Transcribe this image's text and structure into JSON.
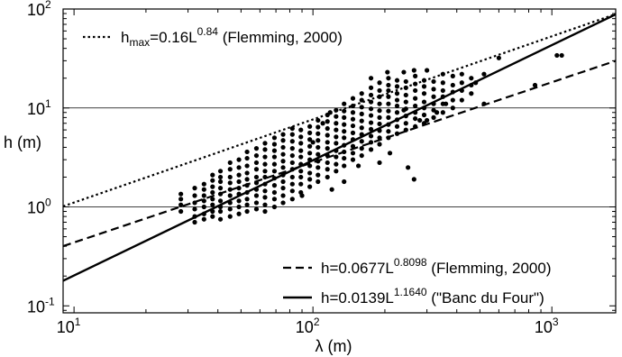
{
  "chart_data": {
    "type": "scatter",
    "xscale": "log",
    "yscale": "log",
    "xlim": [
      9,
      1850
    ],
    "ylim": [
      0.085,
      100
    ],
    "xlabel": "λ (m)",
    "ylabel": "h (m)",
    "grid": {
      "horizontal": [
        1,
        10
      ],
      "vertical": []
    },
    "x_ticks": [
      {
        "value": 10,
        "base": "10",
        "exp": "1"
      },
      {
        "value": 100,
        "base": "10",
        "exp": "2"
      },
      {
        "value": 1000,
        "base": "10",
        "exp": "3"
      }
    ],
    "y_ticks": [
      {
        "value": 0.1,
        "base": "10",
        "exp": "-1"
      },
      {
        "value": 1,
        "base": "10",
        "exp": "0"
      },
      {
        "value": 10,
        "base": "10",
        "exp": "1"
      },
      {
        "value": 100,
        "base": "10",
        "exp": "2"
      }
    ],
    "fits": [
      {
        "id": "hmax",
        "a": 0.16,
        "b": 0.84,
        "dash": "dotted",
        "label_prefix": "h",
        "label_sub": "max",
        "label_eq": "=0.16L",
        "label_exp": "0.84",
        "label_ref": " (Flemming, 2000)",
        "legend_position": "top-left"
      },
      {
        "id": "flemming",
        "a": 0.0677,
        "b": 0.8098,
        "dash": "dashed",
        "label_prefix": "h",
        "label_sub": "",
        "label_eq": "=0.0677L",
        "label_exp": "0.8098",
        "label_ref": " (Flemming, 2000)",
        "legend_position": "bottom-right"
      },
      {
        "id": "banc",
        "a": 0.0139,
        "b": 1.164,
        "dash": "solid",
        "label_prefix": "h",
        "label_sub": "",
        "label_eq": "=0.0139L",
        "label_exp": "1.1640",
        "label_ref": " (\"Banc du Four\")",
        "legend_position": "bottom-right"
      }
    ],
    "points": [
      [
        28,
        0.9
      ],
      [
        28,
        1.05
      ],
      [
        28,
        1.2
      ],
      [
        28,
        1.35
      ],
      [
        32,
        0.7
      ],
      [
        32,
        0.8
      ],
      [
        32,
        0.95
      ],
      [
        32,
        1.1
      ],
      [
        32,
        1.3
      ],
      [
        32,
        1.55
      ],
      [
        35,
        0.75
      ],
      [
        35,
        0.85
      ],
      [
        35,
        1.0
      ],
      [
        35,
        1.15
      ],
      [
        35,
        1.3
      ],
      [
        35,
        1.5
      ],
      [
        35,
        1.7
      ],
      [
        38,
        0.8
      ],
      [
        38,
        0.9
      ],
      [
        38,
        1.05
      ],
      [
        38,
        1.2
      ],
      [
        38,
        1.4
      ],
      [
        38,
        1.6
      ],
      [
        38,
        1.85
      ],
      [
        38,
        2.1
      ],
      [
        41,
        0.75
      ],
      [
        41,
        0.9
      ],
      [
        41,
        1.0
      ],
      [
        41,
        1.15
      ],
      [
        41,
        1.35
      ],
      [
        41,
        1.55
      ],
      [
        41,
        1.8
      ],
      [
        41,
        2.0
      ],
      [
        41,
        2.3
      ],
      [
        45,
        0.8
      ],
      [
        45,
        0.95
      ],
      [
        45,
        1.1
      ],
      [
        45,
        1.3
      ],
      [
        45,
        1.5
      ],
      [
        45,
        1.75
      ],
      [
        45,
        2.0
      ],
      [
        45,
        2.4
      ],
      [
        45,
        2.8
      ],
      [
        49,
        0.85
      ],
      [
        49,
        1.0
      ],
      [
        49,
        1.15
      ],
      [
        49,
        1.35
      ],
      [
        49,
        1.55
      ],
      [
        49,
        1.8
      ],
      [
        49,
        2.1
      ],
      [
        49,
        2.5
      ],
      [
        49,
        3.0
      ],
      [
        53,
        0.9
      ],
      [
        53,
        1.05
      ],
      [
        53,
        1.2
      ],
      [
        53,
        1.4
      ],
      [
        53,
        1.65
      ],
      [
        53,
        1.9
      ],
      [
        53,
        2.2
      ],
      [
        53,
        2.6
      ],
      [
        53,
        3.1
      ],
      [
        53,
        3.6
      ],
      [
        58,
        0.95
      ],
      [
        58,
        1.1
      ],
      [
        58,
        1.3
      ],
      [
        58,
        1.5
      ],
      [
        58,
        1.75
      ],
      [
        58,
        2.0
      ],
      [
        58,
        2.4
      ],
      [
        58,
        2.8
      ],
      [
        58,
        3.3
      ],
      [
        58,
        3.9
      ],
      [
        63,
        0.9
      ],
      [
        63,
        1.05
      ],
      [
        63,
        1.25
      ],
      [
        63,
        1.45
      ],
      [
        63,
        1.7
      ],
      [
        63,
        2.0
      ],
      [
        63,
        2.3
      ],
      [
        63,
        2.7
      ],
      [
        63,
        3.2
      ],
      [
        63,
        3.8
      ],
      [
        63,
        4.4
      ],
      [
        69,
        1.0
      ],
      [
        69,
        1.2
      ],
      [
        69,
        1.4
      ],
      [
        69,
        1.65
      ],
      [
        69,
        1.95
      ],
      [
        69,
        2.3
      ],
      [
        69,
        2.7
      ],
      [
        69,
        3.2
      ],
      [
        69,
        3.7
      ],
      [
        69,
        4.3
      ],
      [
        69,
        5.0
      ],
      [
        75,
        1.1
      ],
      [
        75,
        1.3
      ],
      [
        75,
        1.55
      ],
      [
        75,
        1.8
      ],
      [
        75,
        2.1
      ],
      [
        75,
        2.5
      ],
      [
        75,
        2.9
      ],
      [
        75,
        3.4
      ],
      [
        75,
        4.0
      ],
      [
        75,
        4.7
      ],
      [
        75,
        5.4
      ],
      [
        82,
        1.2
      ],
      [
        82,
        1.45
      ],
      [
        82,
        1.7
      ],
      [
        82,
        2.0
      ],
      [
        82,
        2.4
      ],
      [
        82,
        2.8
      ],
      [
        82,
        3.3
      ],
      [
        82,
        3.9
      ],
      [
        82,
        4.6
      ],
      [
        82,
        5.4
      ],
      [
        82,
        6.2
      ],
      [
        89,
        1.4
      ],
      [
        89,
        1.7
      ],
      [
        89,
        2.0
      ],
      [
        89,
        2.3
      ],
      [
        89,
        2.7
      ],
      [
        89,
        3.2
      ],
      [
        89,
        3.7
      ],
      [
        89,
        4.4
      ],
      [
        89,
        5.1
      ],
      [
        89,
        6.0
      ],
      [
        97,
        1.6
      ],
      [
        97,
        1.9
      ],
      [
        97,
        2.2
      ],
      [
        97,
        2.6
      ],
      [
        97,
        3.0
      ],
      [
        97,
        3.5
      ],
      [
        97,
        4.1
      ],
      [
        97,
        4.8
      ],
      [
        97,
        5.6
      ],
      [
        97,
        6.5
      ],
      [
        105,
        1.8
      ],
      [
        105,
        2.1
      ],
      [
        105,
        2.5
      ],
      [
        105,
        2.9
      ],
      [
        105,
        3.4
      ],
      [
        105,
        4.0
      ],
      [
        105,
        4.7
      ],
      [
        105,
        5.5
      ],
      [
        105,
        6.4
      ],
      [
        105,
        7.5
      ],
      [
        115,
        2.0
      ],
      [
        115,
        2.4
      ],
      [
        115,
        2.8
      ],
      [
        115,
        3.3
      ],
      [
        115,
        3.9
      ],
      [
        115,
        4.5
      ],
      [
        115,
        5.3
      ],
      [
        115,
        6.2
      ],
      [
        115,
        7.3
      ],
      [
        115,
        8.5
      ],
      [
        125,
        2.3
      ],
      [
        125,
        2.7
      ],
      [
        125,
        3.2
      ],
      [
        125,
        3.7
      ],
      [
        125,
        4.4
      ],
      [
        125,
        5.1
      ],
      [
        125,
        6.0
      ],
      [
        125,
        7.0
      ],
      [
        125,
        8.2
      ],
      [
        125,
        9.5
      ],
      [
        135,
        2.6
      ],
      [
        135,
        3.1
      ],
      [
        135,
        3.6
      ],
      [
        135,
        4.2
      ],
      [
        135,
        5.0
      ],
      [
        135,
        5.8
      ],
      [
        135,
        6.8
      ],
      [
        135,
        8.0
      ],
      [
        135,
        9.3
      ],
      [
        135,
        11.0
      ],
      [
        147,
        3.0
      ],
      [
        147,
        3.5
      ],
      [
        147,
        4.1
      ],
      [
        147,
        4.8
      ],
      [
        147,
        5.6
      ],
      [
        147,
        6.6
      ],
      [
        147,
        7.7
      ],
      [
        147,
        9.0
      ],
      [
        147,
        10.5
      ],
      [
        147,
        12.5
      ],
      [
        160,
        3.3
      ],
      [
        160,
        3.9
      ],
      [
        160,
        4.6
      ],
      [
        160,
        5.4
      ],
      [
        160,
        6.3
      ],
      [
        160,
        7.4
      ],
      [
        160,
        8.7
      ],
      [
        160,
        10.2
      ],
      [
        160,
        12.0
      ],
      [
        160,
        14.0
      ],
      [
        175,
        3.8
      ],
      [
        175,
        4.5
      ],
      [
        175,
        5.2
      ],
      [
        175,
        6.1
      ],
      [
        175,
        7.1
      ],
      [
        175,
        8.4
      ],
      [
        175,
        9.8
      ],
      [
        175,
        11.5
      ],
      [
        175,
        13.5
      ],
      [
        175,
        16.0
      ],
      [
        190,
        4.3
      ],
      [
        190,
        5.0
      ],
      [
        190,
        5.9
      ],
      [
        190,
        6.9
      ],
      [
        190,
        8.0
      ],
      [
        190,
        9.4
      ],
      [
        190,
        11.0
      ],
      [
        190,
        13.0
      ],
      [
        190,
        15.0
      ],
      [
        190,
        18.0
      ],
      [
        207,
        5.0
      ],
      [
        207,
        5.8
      ],
      [
        207,
        6.8
      ],
      [
        207,
        8.0
      ],
      [
        207,
        9.3
      ],
      [
        207,
        11.0
      ],
      [
        207,
        13.0
      ],
      [
        207,
        15.0
      ],
      [
        207,
        17.0
      ],
      [
        207,
        20.0
      ],
      [
        225,
        5.5
      ],
      [
        225,
        6.5
      ],
      [
        225,
        7.6
      ],
      [
        225,
        9.0
      ],
      [
        225,
        10.5
      ],
      [
        225,
        12.0
      ],
      [
        225,
        14.0
      ],
      [
        225,
        16.5
      ],
      [
        225,
        19.0
      ],
      [
        245,
        6.0
      ],
      [
        245,
        7.0
      ],
      [
        245,
        8.3
      ],
      [
        245,
        9.8
      ],
      [
        245,
        11.5
      ],
      [
        245,
        13.5
      ],
      [
        245,
        16.0
      ],
      [
        245,
        18.5
      ],
      [
        268,
        6.5
      ],
      [
        268,
        7.8
      ],
      [
        268,
        9.0
      ],
      [
        268,
        10.5
      ],
      [
        268,
        12.5
      ],
      [
        268,
        15.0
      ],
      [
        268,
        17.5
      ],
      [
        268,
        21.0
      ],
      [
        292,
        7.0
      ],
      [
        292,
        8.5
      ],
      [
        292,
        10.0
      ],
      [
        292,
        11.5
      ],
      [
        292,
        14.0
      ],
      [
        292,
        16.5
      ],
      [
        292,
        19.0
      ],
      [
        320,
        8.0
      ],
      [
        320,
        9.5
      ],
      [
        320,
        11.0
      ],
      [
        320,
        13.0
      ],
      [
        320,
        15.5
      ],
      [
        320,
        18.5
      ],
      [
        350,
        9.0
      ],
      [
        350,
        11.0
      ],
      [
        350,
        13.0
      ],
      [
        350,
        15.0
      ],
      [
        350,
        18.0
      ],
      [
        350,
        22.0
      ],
      [
        385,
        10.0
      ],
      [
        385,
        12.0
      ],
      [
        385,
        14.5
      ],
      [
        385,
        17.0
      ],
      [
        385,
        21.0
      ],
      [
        420,
        12.0
      ],
      [
        420,
        15.0
      ],
      [
        420,
        18.0
      ],
      [
        420,
        22.0
      ],
      [
        460,
        14.0
      ],
      [
        460,
        17.0
      ],
      [
        460,
        20.0
      ],
      [
        190,
        2.8
      ],
      [
        210,
        3.5
      ],
      [
        250,
        2.5
      ],
      [
        265,
        1.9
      ],
      [
        155,
        2.6
      ],
      [
        120,
        1.5
      ],
      [
        135,
        1.8
      ],
      [
        90,
        1.3
      ],
      [
        100,
        4.5
      ],
      [
        110,
        7.0
      ],
      [
        118,
        9.0
      ],
      [
        240,
        9.5
      ],
      [
        300,
        7.5
      ],
      [
        330,
        9.0
      ],
      [
        360,
        11.0
      ],
      [
        280,
        7.5
      ],
      [
        480,
        18.0
      ],
      [
        520,
        22.0
      ],
      [
        240,
        23.0
      ],
      [
        265,
        24.0
      ],
      [
        300,
        24.0
      ],
      [
        205,
        23.0
      ],
      [
        175,
        20.0
      ],
      [
        520,
        11.0
      ],
      [
        850,
        17.0
      ],
      [
        1050,
        34.0
      ],
      [
        1100,
        34.0
      ],
      [
        600,
        32.0
      ]
    ]
  }
}
